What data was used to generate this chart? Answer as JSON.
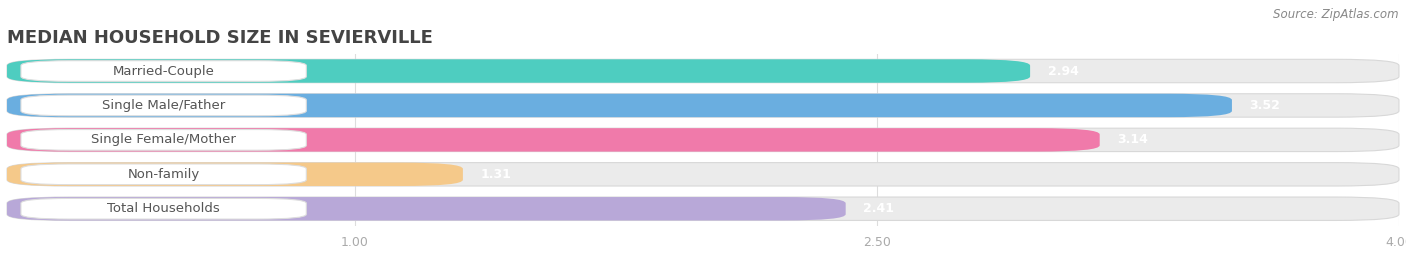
{
  "title": "MEDIAN HOUSEHOLD SIZE IN SEVIERVILLE",
  "source": "Source: ZipAtlas.com",
  "categories": [
    "Married-Couple",
    "Single Male/Father",
    "Single Female/Mother",
    "Non-family",
    "Total Households"
  ],
  "values": [
    2.94,
    3.52,
    3.14,
    1.31,
    2.41
  ],
  "bar_colors": [
    "#4ecdc0",
    "#6aaee0",
    "#f07aaa",
    "#f5c98a",
    "#b8a8d8"
  ],
  "xmin": 0.0,
  "xmax": 4.0,
  "xticks": [
    1.0,
    2.5,
    4.0
  ],
  "background_color": "#ffffff",
  "bar_bg_color": "#ebebeb",
  "title_fontsize": 13,
  "label_fontsize": 9.5,
  "value_fontsize": 9
}
